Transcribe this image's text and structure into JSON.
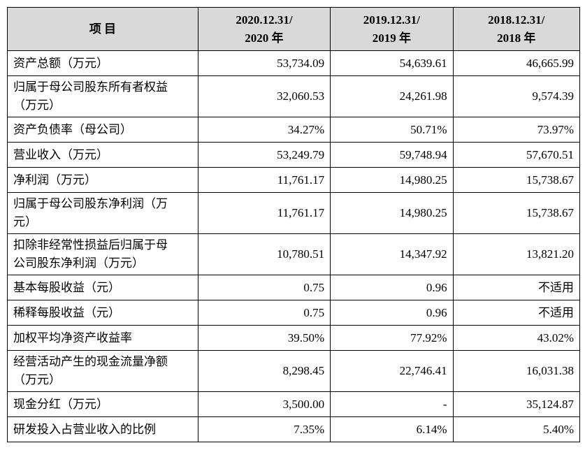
{
  "table": {
    "header": {
      "label": [
        "项 目"
      ],
      "columns": [
        [
          "2020.12.31/",
          "2020 年"
        ],
        [
          "2019.12.31/",
          "2019 年"
        ],
        [
          "2018.12.31/",
          "2018 年"
        ]
      ]
    },
    "rows": [
      {
        "label": [
          "资产总额（万元）"
        ],
        "cells": [
          "53,734.09",
          "54,639.61",
          "46,665.99"
        ]
      },
      {
        "label": [
          "归属于母公司股东所有者权益",
          "（万元）"
        ],
        "cells": [
          "32,060.53",
          "24,261.98",
          "9,574.39"
        ]
      },
      {
        "label": [
          "资产负债率（母公司）"
        ],
        "cells": [
          "34.27%",
          "50.71%",
          "73.97%"
        ]
      },
      {
        "label": [
          "营业收入（万元）"
        ],
        "cells": [
          "53,249.79",
          "59,748.94",
          "57,670.51"
        ]
      },
      {
        "label": [
          "净利润（万元）"
        ],
        "cells": [
          "11,761.17",
          "14,980.25",
          "15,738.67"
        ]
      },
      {
        "label": [
          "归属于母公司股东净利润（万",
          "元）"
        ],
        "cells": [
          "11,761.17",
          "14,980.25",
          "15,738.67"
        ]
      },
      {
        "label": [
          "扣除非经常性损益后归属于母",
          "公司股东净利润（万元）"
        ],
        "cells": [
          "10,780.51",
          "14,347.92",
          "13,821.20"
        ]
      },
      {
        "label": [
          "基本每股收益（元）"
        ],
        "cells": [
          "0.75",
          "0.96",
          "不适用"
        ]
      },
      {
        "label": [
          "稀释每股收益（元）"
        ],
        "cells": [
          "0.75",
          "0.96",
          "不适用"
        ]
      },
      {
        "label": [
          "加权平均净资产收益率"
        ],
        "cells": [
          "39.50%",
          "77.92%",
          "43.02%"
        ]
      },
      {
        "label": [
          "经营活动产生的现金流量净额",
          "（万元）"
        ],
        "cells": [
          "8,298.45",
          "22,746.41",
          "16,031.38"
        ]
      },
      {
        "label": [
          "现金分红（万元）"
        ],
        "cells": [
          "3,500.00",
          "-",
          "35,124.87"
        ]
      },
      {
        "label": [
          "研发投入占营业收入的比例"
        ],
        "cells": [
          "7.35%",
          "6.14%",
          "5.40%"
        ]
      }
    ]
  }
}
